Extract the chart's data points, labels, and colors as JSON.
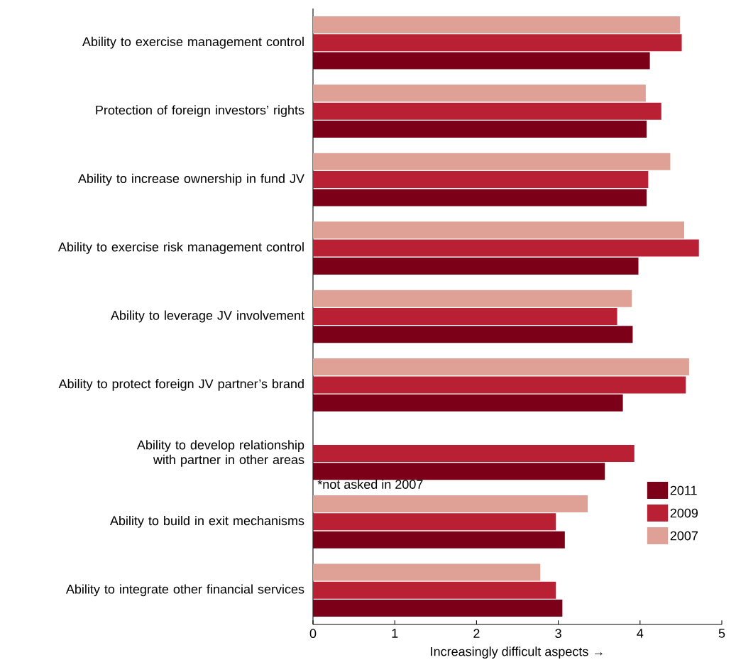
{
  "chart_data": {
    "type": "bar",
    "orientation": "horizontal",
    "xlabel": "Increasingly difficult aspects →",
    "categories": [
      "Ability to exercise management control",
      "Protection of foreign investors’ rights",
      "Ability to increase ownership in fund JV",
      "Ability to exercise risk management control",
      "Ability to leverage JV involvement",
      "Ability to protect foreign JV partner’s brand",
      "Ability to develop relationship with partner in other areas",
      "Ability to build in exit mechanisms",
      "Ability to integrate other financial services"
    ],
    "series": [
      {
        "name": "2011",
        "color": "#7d0019",
        "values": [
          4.12,
          4.08,
          4.08,
          3.98,
          3.91,
          3.79,
          3.57,
          3.08,
          3.05
        ]
      },
      {
        "name": "2009",
        "color": "#b92033",
        "values": [
          4.51,
          4.26,
          4.1,
          4.72,
          3.72,
          4.56,
          3.93,
          2.97,
          2.97
        ]
      },
      {
        "name": "2007",
        "color": "#dfa096",
        "values": [
          4.49,
          4.07,
          4.37,
          4.54,
          3.9,
          4.6,
          null,
          3.36,
          2.78
        ]
      }
    ],
    "xlim": [
      0,
      5
    ],
    "xticks": [
      0,
      1,
      2,
      3,
      4,
      5
    ],
    "legend": "bottom right",
    "annotations": [
      "*not asked in 2007"
    ]
  }
}
